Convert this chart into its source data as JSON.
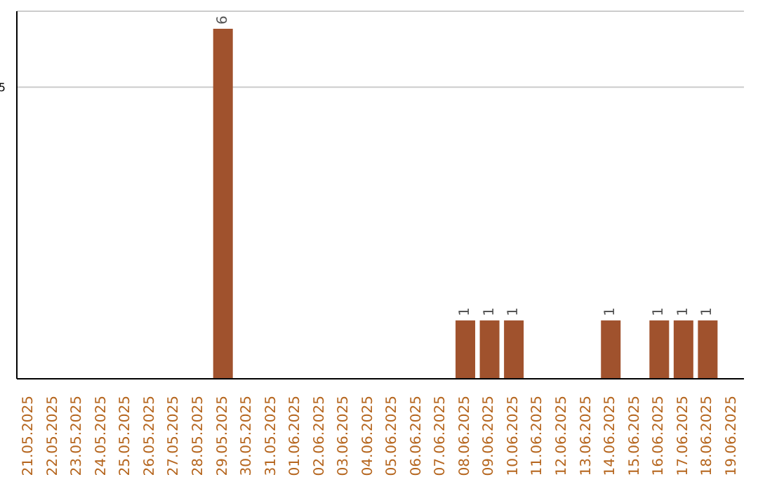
{
  "chart_data": {
    "type": "bar",
    "categories": [
      "21.05.2025",
      "22.05.2025",
      "23.05.2025",
      "24.05.2025",
      "25.05.2025",
      "26.05.2025",
      "27.05.2025",
      "28.05.2025",
      "29.05.2025",
      "30.05.2025",
      "31.05.2025",
      "01.06.2025",
      "02.06.2025",
      "03.06.2025",
      "04.06.2025",
      "05.06.2025",
      "06.06.2025",
      "07.06.2025",
      "08.06.2025",
      "09.06.2025",
      "10.06.2025",
      "11.06.2025",
      "12.06.2025",
      "13.06.2025",
      "14.06.2025",
      "15.06.2025",
      "16.06.2025",
      "17.06.2025",
      "18.06.2025",
      "19.06.2025"
    ],
    "values": [
      0,
      0,
      0,
      0,
      0,
      0,
      0,
      0,
      6,
      0,
      0,
      0,
      0,
      0,
      0,
      0,
      0,
      0,
      1,
      1,
      1,
      0,
      0,
      0,
      1,
      0,
      1,
      1,
      1,
      0
    ],
    "value_labels": [
      null,
      null,
      null,
      null,
      null,
      null,
      null,
      null,
      "6",
      null,
      null,
      null,
      null,
      null,
      null,
      null,
      null,
      null,
      "1",
      "1",
      "1",
      null,
      null,
      null,
      "1",
      null,
      "1",
      "1",
      "1",
      null
    ],
    "color": "#a0522d",
    "ylim": [
      0,
      6.3
    ],
    "yticks": [
      5
    ],
    "grid": "y"
  }
}
